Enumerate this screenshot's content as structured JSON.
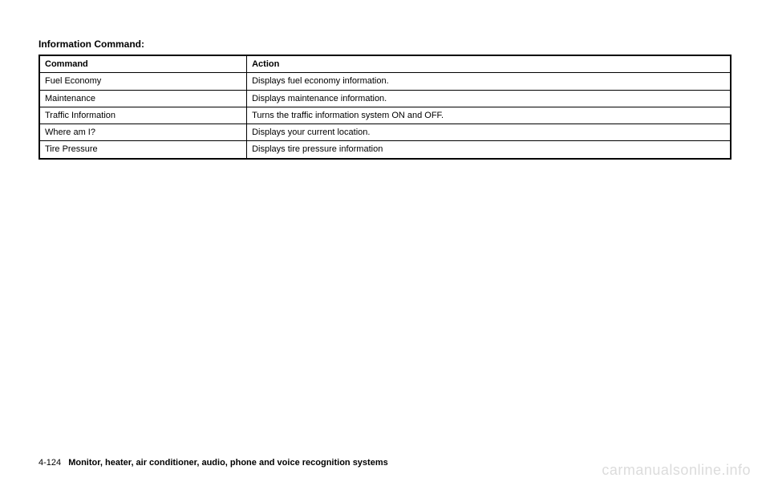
{
  "section_title": "Information Command:",
  "table": {
    "headers": {
      "command": "Command",
      "action": "Action"
    },
    "rows": [
      {
        "command": "Fuel Economy",
        "action": "Displays fuel economy information."
      },
      {
        "command": "Maintenance",
        "action": "Displays maintenance information."
      },
      {
        "command": "Traffic Information",
        "action": "Turns the traffic information system ON and OFF."
      },
      {
        "command": "Where am I?",
        "action": "Displays your current location."
      },
      {
        "command": "Tire Pressure",
        "action": "Displays tire pressure information"
      }
    ],
    "column_widths": [
      "30%",
      "70%"
    ],
    "border_color": "#000000",
    "outer_border_width": 2,
    "inner_border_width": 1,
    "font_size": 11,
    "text_color": "#000000",
    "background_color": "#ffffff"
  },
  "footer": {
    "page_number": "4-124",
    "chapter_title": "Monitor, heater, air conditioner, audio, phone and voice recognition systems"
  },
  "watermark": "carmanualsonline.info",
  "colors": {
    "page_background": "#ffffff",
    "text": "#000000",
    "watermark": "#dcdcdc"
  },
  "typography": {
    "section_title_fontsize": 12,
    "section_title_weight": "bold",
    "table_fontsize": 11,
    "footer_fontsize": 11,
    "watermark_fontsize": 18
  }
}
